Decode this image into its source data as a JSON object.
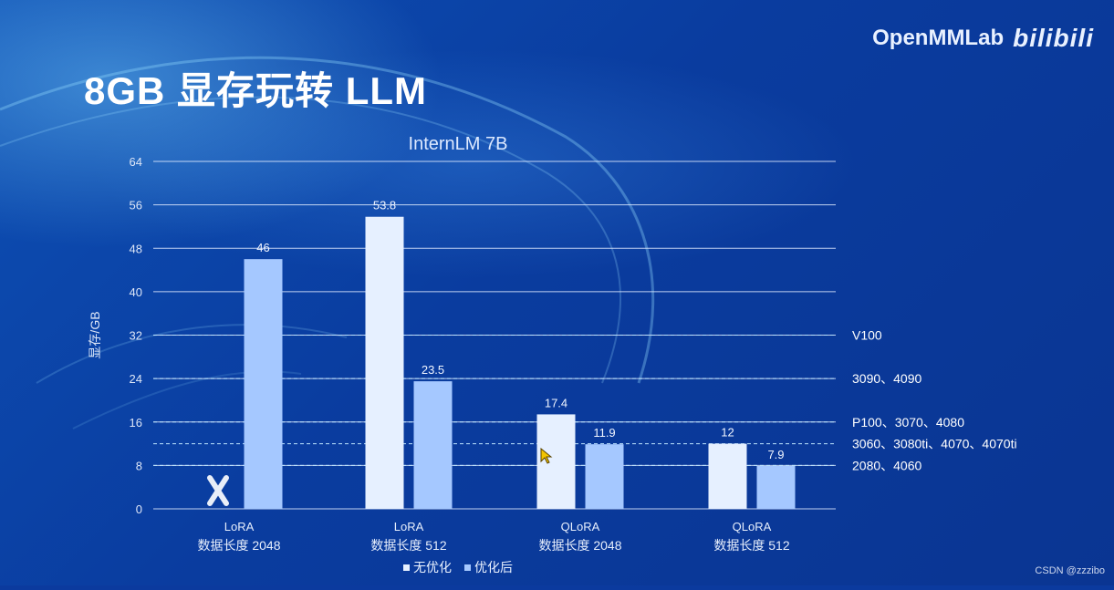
{
  "slide": {
    "title": "8GB 显存玩转 LLM",
    "brand": "OpenMMLab",
    "brand_logo": "bilibili",
    "credit": "CSDN @zzzibo"
  },
  "legend": {
    "items": [
      {
        "label": "无优化",
        "color": "#e6f0ff"
      },
      {
        "label": "优化后",
        "color": "#a5c8ff"
      }
    ]
  },
  "chart_data": {
    "type": "bar",
    "title": "InternLM 7B",
    "ylabel": "显存/GB",
    "ylim": [
      0,
      64
    ],
    "yticks": [
      0,
      8,
      16,
      24,
      32,
      40,
      48,
      56,
      64
    ],
    "categories": [
      [
        "LoRA",
        "数据长度 2048"
      ],
      [
        "LoRA",
        "数据长度 512"
      ],
      [
        "QLoRA",
        "数据长度 2048"
      ],
      [
        "QLoRA",
        "数据长度 512"
      ]
    ],
    "series": [
      {
        "name": "无优化",
        "values": [
          null,
          53.8,
          17.4,
          12
        ],
        "color": "#e6f0ff"
      },
      {
        "name": "优化后",
        "values": [
          46,
          23.5,
          11.9,
          7.9
        ],
        "color": "#a5c8ff"
      }
    ],
    "data_labels": [
      [
        null,
        "53.8",
        "17.4",
        "12"
      ],
      [
        "46",
        "23.5",
        "11.9",
        "7.9"
      ]
    ],
    "reference_lines": [
      {
        "value": 32,
        "label": "V100"
      },
      {
        "value": 24,
        "label": "3090、4090"
      },
      {
        "value": 16,
        "label": "P100、3070、4080"
      },
      {
        "value": 12,
        "label": "3060、3080ti、4070、4070ti"
      },
      {
        "value": 8,
        "label": "2080、4060"
      }
    ],
    "grid": true,
    "legend_position": "bottom"
  }
}
